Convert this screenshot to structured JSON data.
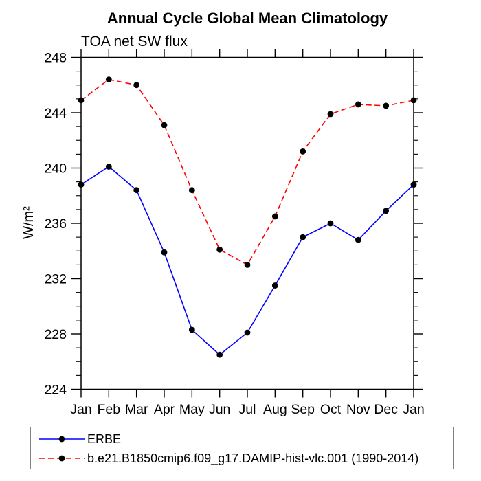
{
  "title": "Annual Cycle Global Mean Climatology",
  "subtitle": "TOA net SW flux",
  "chart_data": {
    "type": "line",
    "x_categories": [
      "Jan",
      "Feb",
      "Mar",
      "Apr",
      "May",
      "Jun",
      "Jul",
      "Aug",
      "Sep",
      "Oct",
      "Nov",
      "Dec",
      "Jan"
    ],
    "xlabel": "",
    "ylabel": "W/m²",
    "ylim": [
      224,
      248
    ],
    "ytick_major_step": 4,
    "ytick_minor_step": 1,
    "ytick_labels": [
      "224",
      "228",
      "232",
      "236",
      "240",
      "244",
      "248"
    ],
    "grid": false,
    "legend_position": "bottom-left",
    "series": [
      {
        "name": "ERBE",
        "color": "#0000ff",
        "line_style": "solid",
        "marker": "filled-circle",
        "marker_color": "#000000",
        "values": [
          238.8,
          240.1,
          238.4,
          233.9,
          228.3,
          226.5,
          228.1,
          231.5,
          235.0,
          236.0,
          234.8,
          236.9,
          238.8
        ]
      },
      {
        "name": "b.e21.B1850cmip6.f09_g17.DAMIP-hist-vlc.001 (1990-2014)",
        "color": "#ff0000",
        "line_style": "dashed",
        "marker": "filled-circle",
        "marker_color": "#000000",
        "values": [
          244.9,
          246.4,
          246.0,
          243.1,
          238.4,
          234.1,
          233.0,
          236.5,
          241.2,
          243.9,
          244.6,
          244.5,
          244.9
        ]
      }
    ]
  },
  "colors": {
    "axis": "#000000",
    "text": "#000000",
    "legend_border": "#828282",
    "background": "#ffffff"
  }
}
